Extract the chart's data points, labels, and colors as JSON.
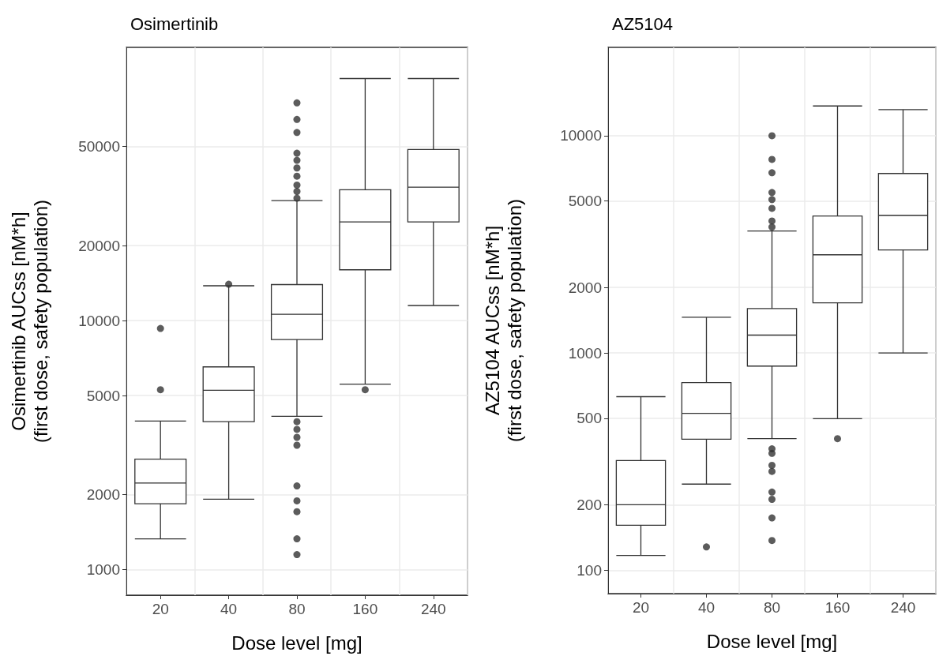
{
  "chart_data": [
    {
      "type": "box",
      "title": "Osimertinib",
      "xlabel": "Dose level [mg]",
      "ylabel": "Osimertinib AUCss [nM*h]\n(first dose, safety population)",
      "categories": [
        "20",
        "40",
        "80",
        "160",
        "240"
      ],
      "log": true,
      "grid": true,
      "ylim": [
        790,
        125000
      ],
      "yticks": [
        1000,
        2000,
        5000,
        10000,
        20000,
        50000
      ],
      "series": [
        {
          "color": "#333333",
          "boxes": [
            {
              "low": 1330,
              "q1": 1840,
              "median": 2230,
              "q3": 2780,
              "high": 3950,
              "outliers": [
                9300,
                5280
              ]
            },
            {
              "low": 1920,
              "q1": 3930,
              "median": 5250,
              "q3": 6520,
              "high": 13800,
              "outliers": [
                14000
              ]
            },
            {
              "low": 4130,
              "q1": 8400,
              "median": 10600,
              "q3": 13950,
              "high": 30300,
              "outliers": [
                74800,
                64200,
                56900,
                47000,
                44000,
                41000,
                38000,
                35000,
                33000,
                31000,
                3930,
                3660,
                3400,
                3160,
                2170,
                1890,
                1710,
                1330,
                1150
              ]
            },
            {
              "low": 5560,
              "q1": 16000,
              "median": 24900,
              "q3": 33500,
              "high": 93700,
              "outliers": [
                5280
              ]
            },
            {
              "low": 11500,
              "q1": 24900,
              "median": 34300,
              "q3": 48600,
              "high": 93700
            }
          ]
        }
      ]
    },
    {
      "type": "box",
      "title": "AZ5104",
      "xlabel": "Dose level [mg]",
      "ylabel": "AZ5104 AUCss [nM*h]\n(first dose, safety population)",
      "categories": [
        "20",
        "40",
        "80",
        "160",
        "240"
      ],
      "log": true,
      "grid": true,
      "ylim": [
        78,
        25500
      ],
      "yticks": [
        100,
        200,
        500,
        1000,
        2000,
        5000,
        10000
      ],
      "series": [
        {
          "color": "#333333",
          "boxes": [
            {
              "low": 117,
              "q1": 161,
              "median": 200,
              "q3": 320,
              "high": 629
            },
            {
              "low": 249,
              "q1": 401,
              "median": 527,
              "q3": 731,
              "high": 1460,
              "outliers": [
                128
              ]
            },
            {
              "low": 403,
              "q1": 870,
              "median": 1208,
              "q3": 1600,
              "high": 3640,
              "outliers": [
                10000,
                7780,
                6750,
                5480,
                5080,
                4630,
                4050,
                3800,
                362,
                345,
                304,
                285,
                229,
                212,
                174,
                137
              ]
            },
            {
              "low": 498,
              "q1": 1700,
              "median": 2830,
              "q3": 4270,
              "high": 13700,
              "outliers": [
                403
              ]
            },
            {
              "low": 1000,
              "q1": 2980,
              "median": 4300,
              "q3": 6700,
              "high": 13170
            }
          ]
        }
      ]
    }
  ]
}
